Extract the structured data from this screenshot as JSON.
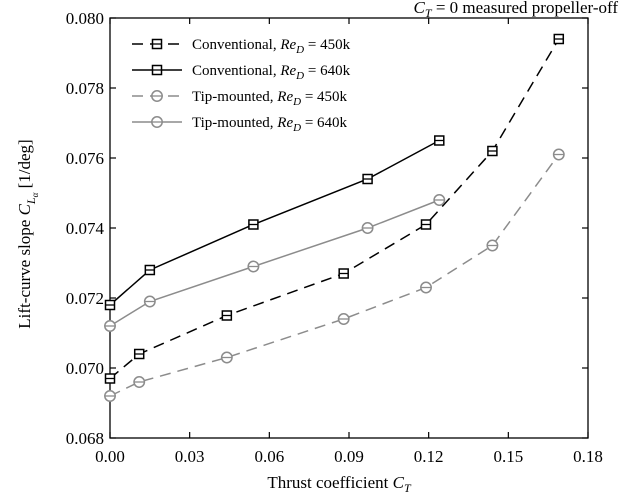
{
  "chart_data": {
    "type": "line",
    "annotation": {
      "sym": "C",
      "sub": "T",
      "rest": " = 0 measured propeller-off"
    },
    "xlabel": {
      "text": "Thrust coefficient ",
      "sym": "C",
      "sub": "T"
    },
    "ylabel": {
      "text": "Lift-curve slope ",
      "sym": "C",
      "sub": "L",
      "subsub": "α",
      "unit": "[1/deg]"
    },
    "xlim": [
      0,
      0.18
    ],
    "ylim": [
      0.068,
      0.08
    ],
    "xticks": [
      "0.00",
      "0.03",
      "0.06",
      "0.09",
      "0.12",
      "0.15",
      "0.18"
    ],
    "yticks": [
      "0.068",
      "0.070",
      "0.072",
      "0.074",
      "0.076",
      "0.078",
      "0.080"
    ],
    "grid": false,
    "legend_position": "top-left",
    "series": [
      {
        "label_text": "Conventional, ",
        "label_sym": "Re",
        "label_sub": "D",
        "label_val": " = 450k",
        "color": "#000000",
        "dashed": true,
        "marker": "square",
        "x": [
          0.0,
          0.011,
          0.044,
          0.088,
          0.119,
          0.144,
          0.169
        ],
        "y": [
          0.0697,
          0.0704,
          0.0715,
          0.0727,
          0.0741,
          0.0762,
          0.0794
        ]
      },
      {
        "label_text": "Conventional, ",
        "label_sym": "Re",
        "label_sub": "D",
        "label_val": " = 640k",
        "color": "#000000",
        "dashed": false,
        "marker": "square",
        "x": [
          0.0,
          0.015,
          0.054,
          0.097,
          0.124
        ],
        "y": [
          0.0718,
          0.0728,
          0.0741,
          0.0754,
          0.0765
        ]
      },
      {
        "label_text": "Tip-mounted, ",
        "label_sym": "Re",
        "label_sub": "D",
        "label_val": " = 450k",
        "color": "#8c8c8c",
        "dashed": true,
        "marker": "circle",
        "x": [
          0.0,
          0.011,
          0.044,
          0.088,
          0.119,
          0.144,
          0.169
        ],
        "y": [
          0.0692,
          0.0696,
          0.0703,
          0.0714,
          0.0723,
          0.0735,
          0.0761
        ]
      },
      {
        "label_text": "Tip-mounted, ",
        "label_sym": "Re",
        "label_sub": "D",
        "label_val": " = 640k",
        "color": "#8c8c8c",
        "dashed": false,
        "marker": "circle",
        "x": [
          0.0,
          0.015,
          0.054,
          0.097,
          0.124
        ],
        "y": [
          0.0712,
          0.0719,
          0.0729,
          0.074,
          0.0748
        ]
      }
    ]
  }
}
